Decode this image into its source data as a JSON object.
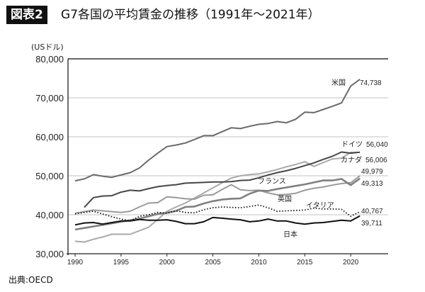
{
  "header": {
    "badge": "図表2",
    "title": "G7各国の平均賃金の推移（1991年～2021年）"
  },
  "source": "出典:OECD",
  "chart_data": {
    "type": "line",
    "title": "G7各国の平均賃金の推移（1991年～2021年）",
    "ylabel": "(USドル)",
    "xlabel": "",
    "ylim": [
      30000,
      80000
    ],
    "xlim": [
      1990,
      2021
    ],
    "yticks": [
      30000,
      40000,
      50000,
      60000,
      70000,
      80000
    ],
    "ytick_labels": [
      "30,000",
      "40,000",
      "50,000",
      "60,000",
      "70,000",
      "80,000"
    ],
    "xticks": [
      1990,
      1995,
      2000,
      2005,
      2010,
      2015,
      2020
    ],
    "xtick_labels": [
      "1990",
      "1995",
      "2000",
      "2005",
      "2010",
      "2015",
      "2020"
    ],
    "grid": "horizontal",
    "x": [
      1990,
      1991,
      1992,
      1993,
      1994,
      1995,
      1996,
      1997,
      1998,
      1999,
      2000,
      2001,
      2002,
      2003,
      2004,
      2005,
      2006,
      2007,
      2008,
      2009,
      2010,
      2011,
      2012,
      2013,
      2014,
      2015,
      2016,
      2017,
      2018,
      2019,
      2020,
      2021
    ],
    "series": [
      {
        "name": "米国",
        "end_label": "74,738",
        "color": "#6a6a6a",
        "style": "solid",
        "values": [
          48700,
          49200,
          50300,
          49900,
          49600,
          50200,
          50800,
          52000,
          54000,
          55800,
          57500,
          57900,
          58400,
          59300,
          60300,
          60300,
          61300,
          62300,
          62100,
          62700,
          63200,
          63400,
          63900,
          63600,
          64500,
          66300,
          66200,
          67000,
          67800,
          68700,
          73000,
          74738
        ]
      },
      {
        "name": "ドイツ",
        "end_label": "56,040",
        "color": "#474747",
        "style": "solid",
        "values": [
          null,
          41900,
          44400,
          44800,
          44900,
          45800,
          46300,
          46100,
          46700,
          47200,
          47500,
          47700,
          48100,
          48200,
          48300,
          48400,
          48400,
          48500,
          48800,
          48900,
          49500,
          50200,
          50800,
          51300,
          51900,
          52600,
          53300,
          54200,
          55000,
          56100,
          55800,
          56040
        ]
      },
      {
        "name": "カナダ",
        "end_label": "56,006",
        "color": "#aaaaaa",
        "style": "solid",
        "values": [
          33200,
          33000,
          33700,
          34300,
          35000,
          35000,
          35000,
          35900,
          36800,
          38800,
          40900,
          42000,
          43000,
          44300,
          45600,
          46900,
          48200,
          49400,
          50000,
          50300,
          50500,
          51000,
          51600,
          52300,
          52900,
          53600,
          52400,
          53400,
          54300,
          54500,
          56000,
          56006
        ]
      },
      {
        "name": "英国",
        "end_label": "49,979",
        "color": "#9a9a9a",
        "style": "solid",
        "values": [
          40400,
          40800,
          41200,
          41000,
          40800,
          40600,
          40900,
          42000,
          43000,
          43100,
          44600,
          44400,
          44100,
          44000,
          45000,
          45100,
          46500,
          47700,
          46400,
          46200,
          46300,
          45600,
          45100,
          45200,
          45500,
          46300,
          46800,
          47100,
          47600,
          48000,
          48200,
          49979
        ]
      },
      {
        "name": "フランス",
        "end_label": "49,313",
        "color": "#808080",
        "style": "thick",
        "values": [
          36200,
          36600,
          37000,
          37400,
          37800,
          38200,
          38600,
          39000,
          39600,
          40200,
          40500,
          41000,
          42000,
          42100,
          42900,
          43500,
          43900,
          44100,
          44200,
          45400,
          46200,
          46100,
          46600,
          47000,
          47400,
          47800,
          48300,
          48800,
          48800,
          49200,
          47600,
          49313
        ]
      },
      {
        "name": "イタリア",
        "end_label": "40,767",
        "color": "#111111",
        "style": "dotted",
        "values": [
          40200,
          40600,
          40900,
          40200,
          39500,
          38900,
          38400,
          39600,
          40000,
          40600,
          40400,
          41000,
          40600,
          40500,
          41300,
          41800,
          42000,
          41900,
          41800,
          42100,
          42500,
          41800,
          40900,
          41000,
          41100,
          41200,
          41700,
          41500,
          41500,
          41400,
          39600,
          40767
        ]
      },
      {
        "name": "日本",
        "end_label": "39,711",
        "color": "#111111",
        "style": "solid",
        "values": [
          37400,
          37900,
          38000,
          37600,
          38000,
          38400,
          38400,
          38800,
          38600,
          38600,
          38700,
          38300,
          37700,
          37700,
          38200,
          39300,
          39100,
          38900,
          38700,
          38200,
          38400,
          38900,
          38400,
          38400,
          37900,
          37600,
          37900,
          38000,
          38300,
          38600,
          38400,
          39711
        ]
      }
    ]
  }
}
